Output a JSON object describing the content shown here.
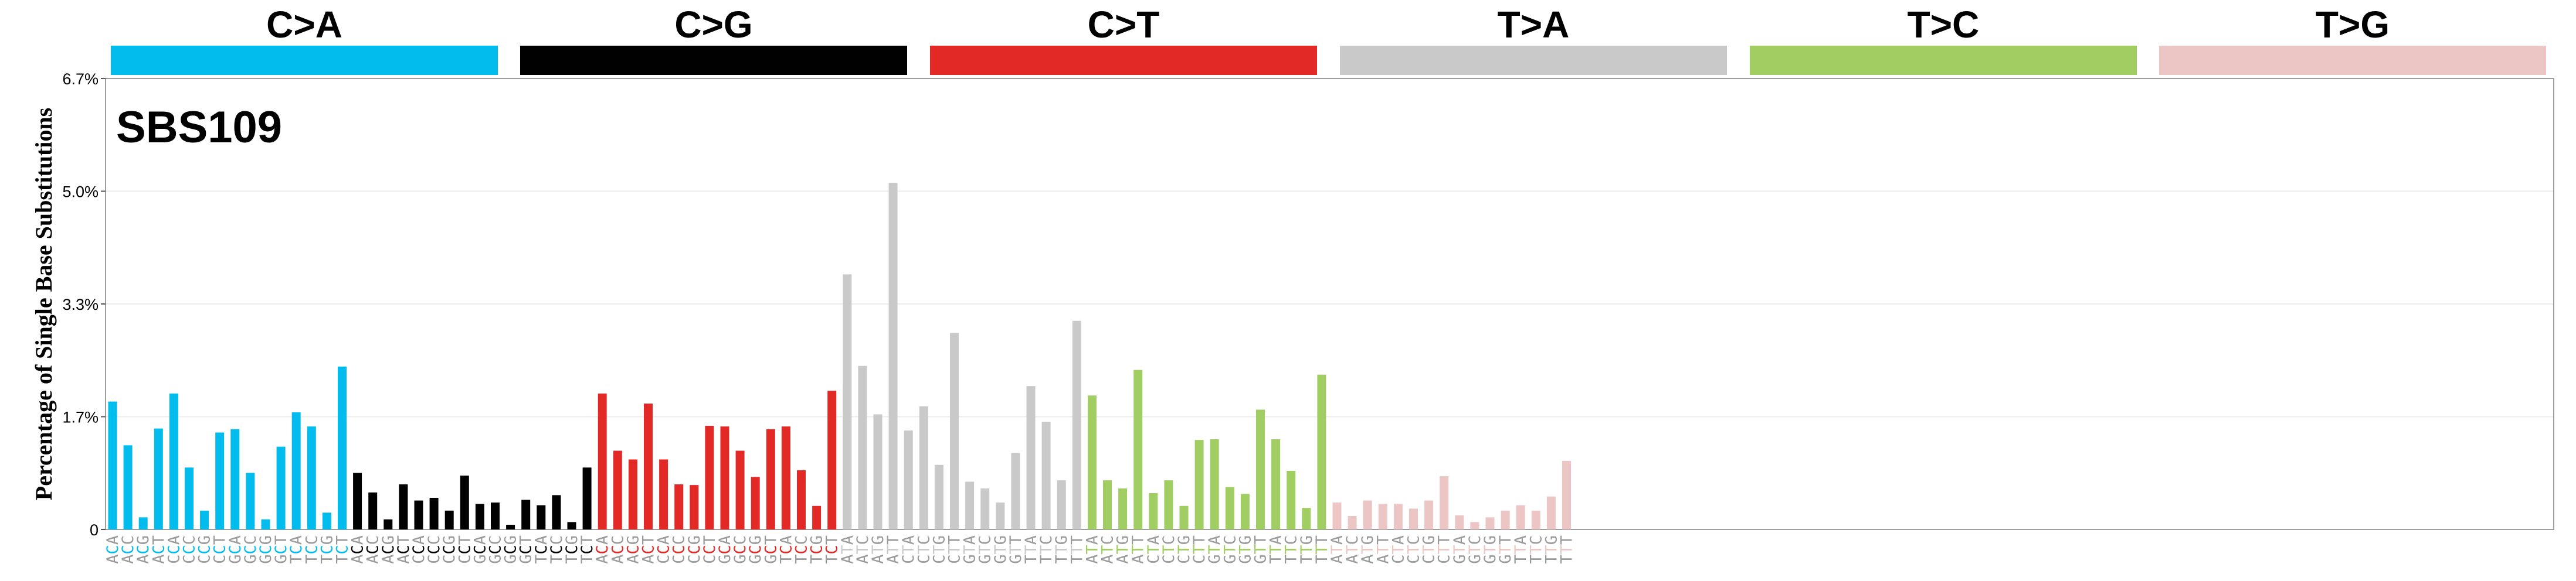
{
  "chart_data": {
    "type": "bar",
    "title": "SBS109",
    "ylabel": "Percentage of Single Base Substitutions",
    "xlabel": "",
    "ylim": [
      0,
      6.7
    ],
    "yticks": [
      "0",
      "1.7%",
      "3.3%",
      "5.0%",
      "6.7%"
    ],
    "ytick_values": [
      0,
      1.675,
      3.35,
      5.025,
      6.7
    ],
    "grid": true,
    "legend": "none",
    "mutation_types": [
      {
        "name": "C>A",
        "color": "#03BCEE"
      },
      {
        "name": "C>G",
        "color": "#010101"
      },
      {
        "name": "C>T",
        "color": "#E32926"
      },
      {
        "name": "T>A",
        "color": "#CAC9C9"
      },
      {
        "name": "T>C",
        "color": "#A1CE63"
      },
      {
        "name": "T>G",
        "color": "#EBC6C4"
      }
    ],
    "categories": [
      "ACA",
      "ACC",
      "ACG",
      "ACT",
      "CCA",
      "CCC",
      "CCG",
      "CCT",
      "GCA",
      "GCC",
      "GCG",
      "GCT",
      "TCA",
      "TCC",
      "TCG",
      "TCT",
      "ACA",
      "ACC",
      "ACG",
      "ACT",
      "CCA",
      "CCC",
      "CCG",
      "CCT",
      "GCA",
      "GCC",
      "GCG",
      "GCT",
      "TCA",
      "TCC",
      "TCG",
      "TCT",
      "ACA",
      "ACC",
      "ACG",
      "ACT",
      "CCA",
      "CCC",
      "CCG",
      "CCT",
      "GCA",
      "GCC",
      "GCG",
      "GCT",
      "TCA",
      "TCC",
      "TCG",
      "TCT",
      "ATA",
      "ATC",
      "ATG",
      "ATT",
      "CTA",
      "CTC",
      "CTG",
      "CTT",
      "GTA",
      "GTC",
      "GTG",
      "GTT",
      "TTA",
      "TTC",
      "TTG",
      "TTT",
      "ATA",
      "ATC",
      "ATG",
      "ATT",
      "CTA",
      "CTC",
      "CTG",
      "CTT",
      "GTA",
      "GTC",
      "GTG",
      "GTT",
      "TTA",
      "TTC",
      "TTG",
      "TTT",
      "ATA",
      "ATC",
      "ATG",
      "ATT",
      "CTA",
      "CTC",
      "CTG",
      "CTT",
      "GTA",
      "GTC",
      "GTG",
      "GTT",
      "TTA",
      "TTC",
      "TTG",
      "TTT"
    ],
    "values": [
      1.9,
      1.25,
      0.18,
      1.5,
      2.02,
      0.92,
      0.28,
      1.44,
      1.49,
      0.84,
      0.15,
      1.23,
      1.74,
      1.53,
      0.25,
      2.42,
      0.84,
      0.55,
      0.15,
      0.67,
      0.43,
      0.47,
      0.28,
      0.8,
      0.38,
      0.4,
      0.07,
      0.44,
      0.36,
      0.51,
      0.11,
      0.92,
      2.02,
      1.17,
      1.04,
      1.87,
      1.04,
      0.67,
      0.66,
      1.54,
      1.53,
      1.17,
      0.78,
      1.49,
      1.53,
      0.88,
      0.35,
      2.06,
      3.79,
      2.43,
      1.71,
      5.15,
      1.47,
      1.83,
      0.96,
      2.92,
      0.71,
      0.61,
      0.4,
      1.14,
      2.13,
      1.6,
      0.73,
      3.1,
      1.99,
      0.73,
      0.61,
      2.37,
      0.54,
      0.73,
      0.35,
      1.33,
      1.34,
      0.63,
      0.53,
      1.78,
      1.34,
      0.87,
      0.32,
      2.3,
      0.4,
      0.2,
      0.43,
      0.38,
      0.38,
      0.31,
      0.43,
      0.79,
      0.21,
      0.11,
      0.18,
      0.28,
      0.36,
      0.28,
      0.49,
      1.02
    ]
  }
}
